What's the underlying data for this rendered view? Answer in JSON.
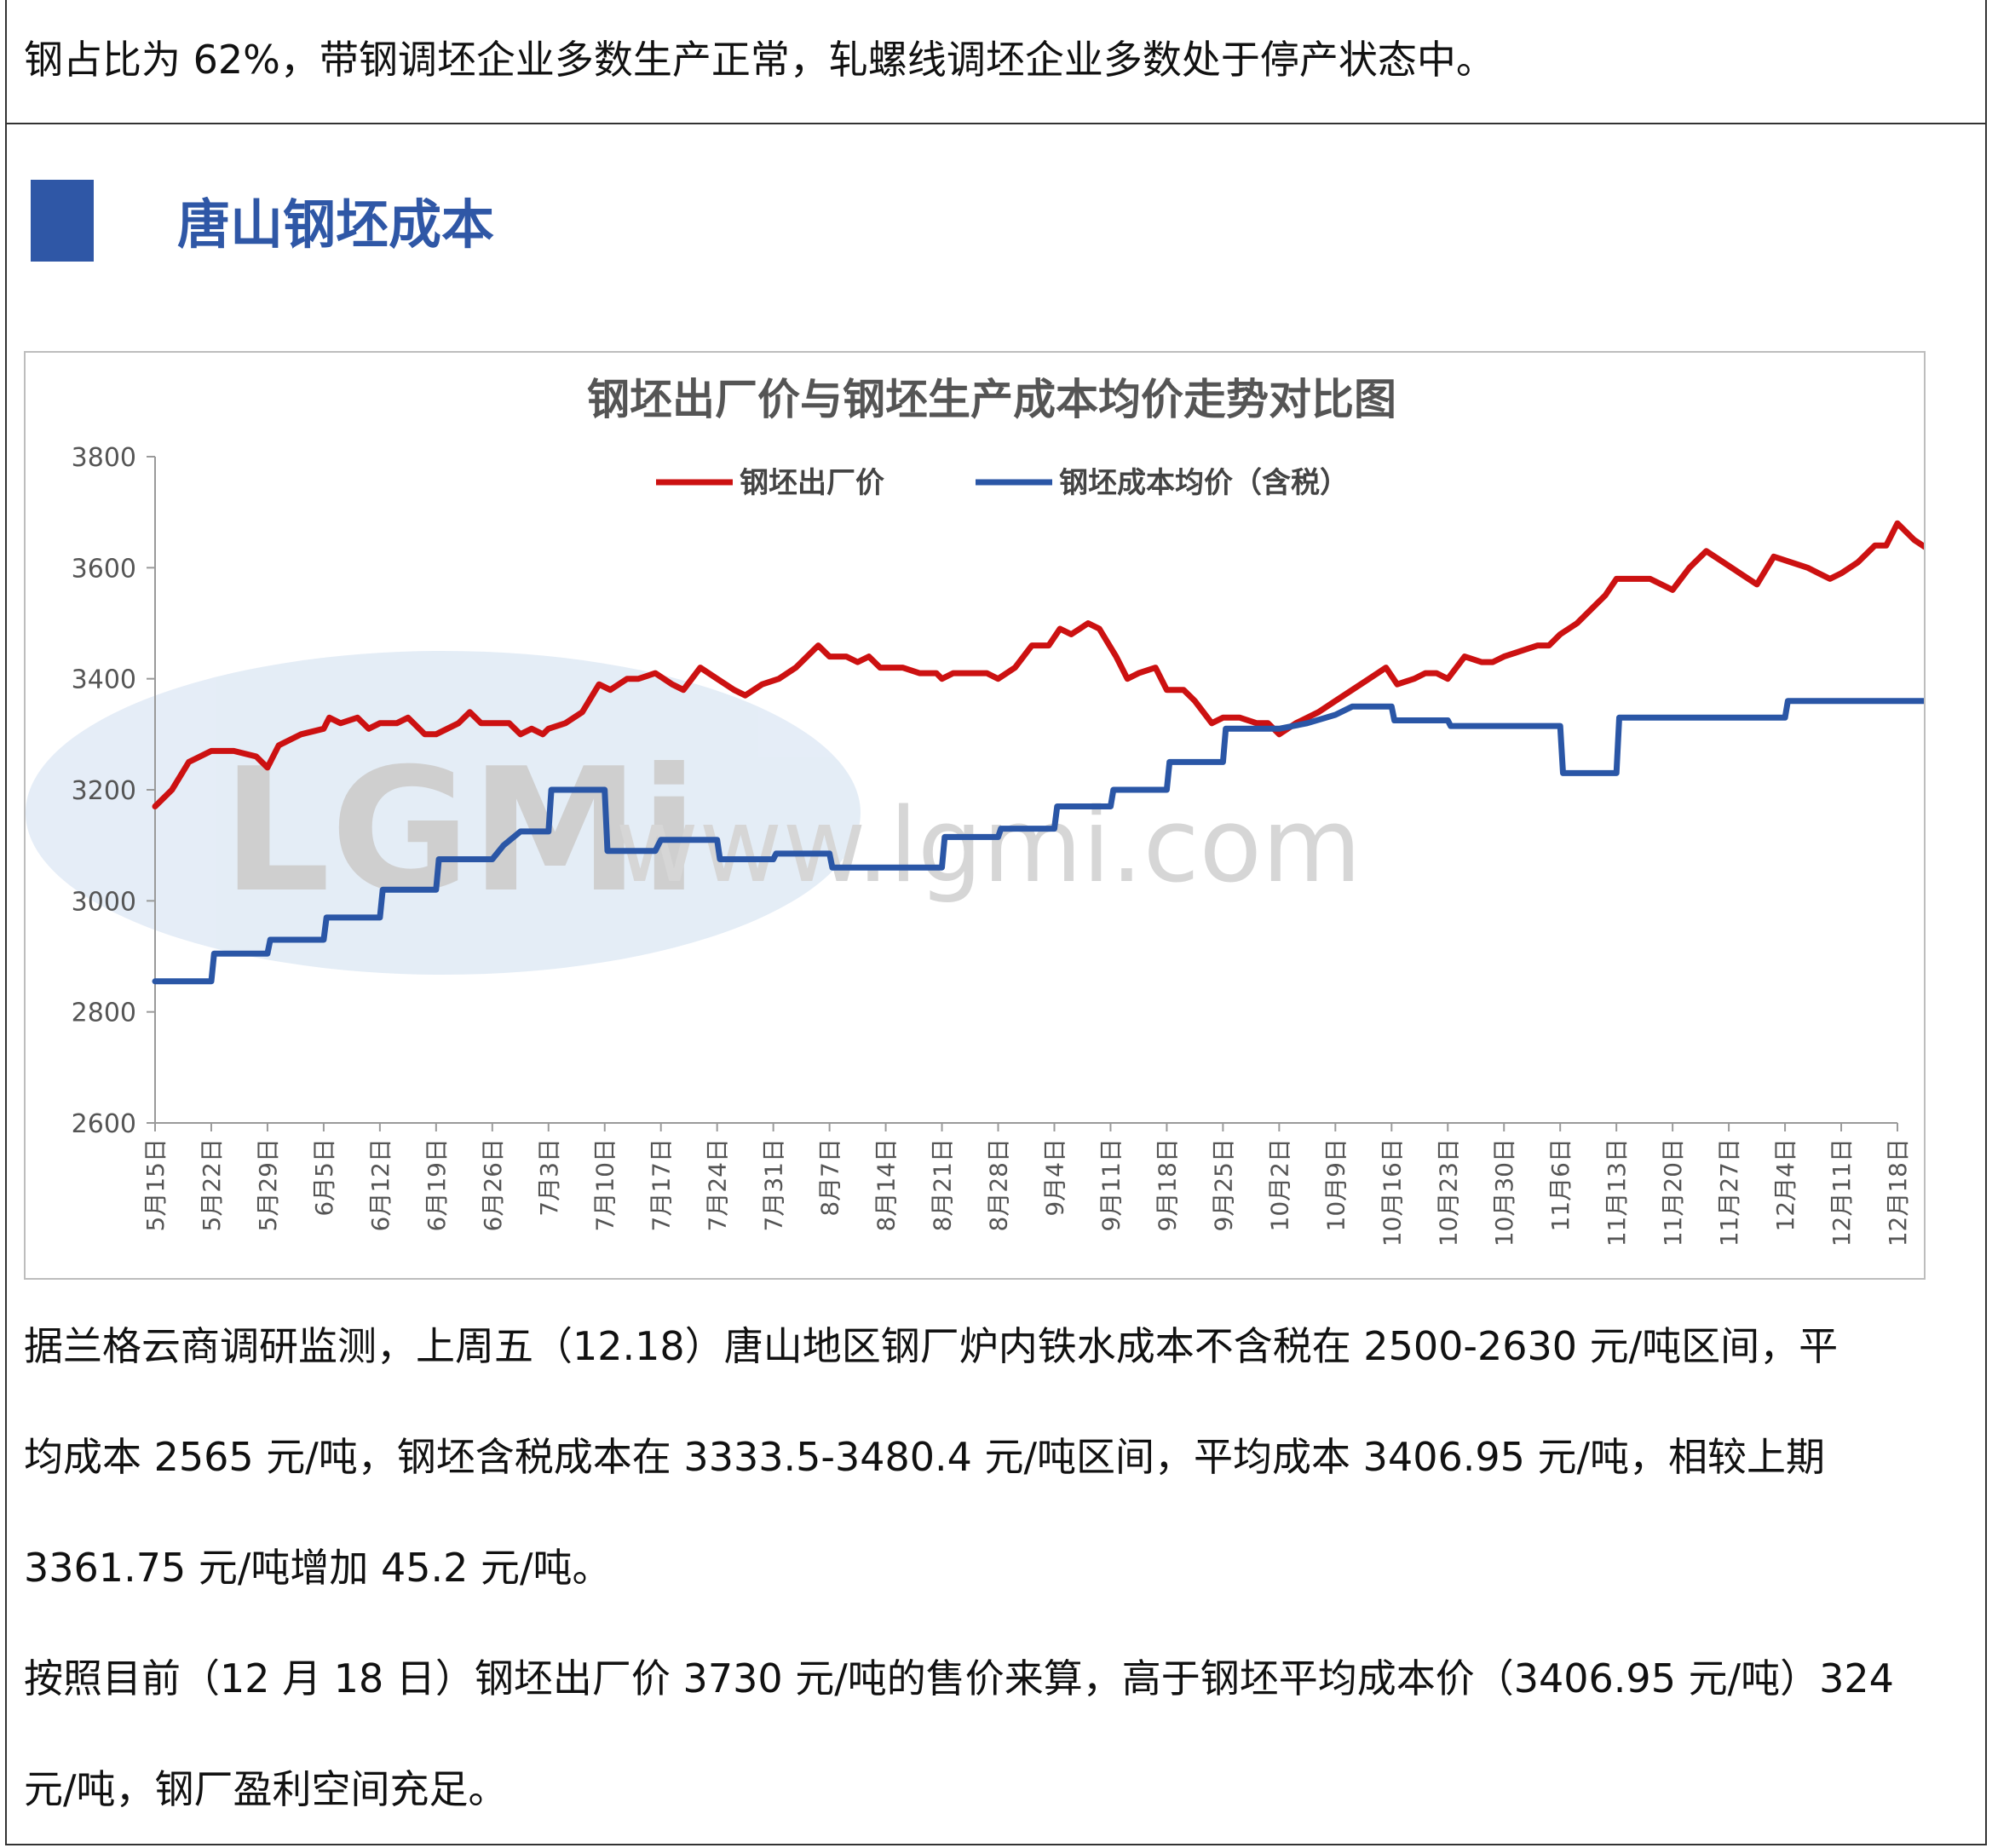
{
  "top_text": "钢占比为 62%，带钢调坯企业多数生产正常，轧螺线调坯企业多数处于停产状态中。",
  "section_title": "唐山钢坯成本",
  "colors": {
    "accent": "#2f57a6",
    "price_line": "#cc1111",
    "cost_line": "#2a56a6"
  },
  "watermark": {
    "logo_text": "LGMi",
    "url_text": "www.lgmi.com"
  },
  "chart_data": {
    "type": "line",
    "title": "钢坯出厂价与钢坯生产成本均价走势对比图",
    "xlabel": "",
    "ylabel": "",
    "ylim": [
      2600,
      3800
    ],
    "yticks": [
      2600,
      2800,
      3000,
      3200,
      3400,
      3600,
      3800
    ],
    "xticks": [
      "5月15日",
      "5月22日",
      "5月29日",
      "6月5日",
      "6月12日",
      "6月19日",
      "6月26日",
      "7月3日",
      "7月10日",
      "7月17日",
      "7月24日",
      "7月31日",
      "8月7日",
      "8月14日",
      "8月21日",
      "8月28日",
      "9月4日",
      "9月11日",
      "9月18日",
      "9月25日",
      "10月2日",
      "10月9日",
      "10月16日",
      "10月23日",
      "10月30日",
      "11月6日",
      "11月13日",
      "11月20日",
      "11月27日",
      "12月4日",
      "12月11日",
      "12月18日"
    ],
    "legend_position": "top",
    "grid": false,
    "series": [
      {
        "name": "钢坯出厂价",
        "color": "#cc1111",
        "points": [
          [
            0,
            3170
          ],
          [
            0.3,
            3200
          ],
          [
            0.6,
            3250
          ],
          [
            1,
            3270
          ],
          [
            1.4,
            3270
          ],
          [
            1.6,
            3265
          ],
          [
            1.8,
            3260
          ],
          [
            2,
            3240
          ],
          [
            2.2,
            3280
          ],
          [
            2.6,
            3300
          ],
          [
            3,
            3310
          ],
          [
            3.1,
            3330
          ],
          [
            3.3,
            3320
          ],
          [
            3.6,
            3330
          ],
          [
            3.8,
            3310
          ],
          [
            4,
            3320
          ],
          [
            4.3,
            3320
          ],
          [
            4.5,
            3330
          ],
          [
            4.8,
            3300
          ],
          [
            5,
            3300
          ],
          [
            5.4,
            3320
          ],
          [
            5.6,
            3340
          ],
          [
            5.8,
            3320
          ],
          [
            6,
            3320
          ],
          [
            6.3,
            3320
          ],
          [
            6.5,
            3300
          ],
          [
            6.7,
            3310
          ],
          [
            6.9,
            3300
          ],
          [
            7,
            3310
          ],
          [
            7.3,
            3320
          ],
          [
            7.6,
            3340
          ],
          [
            7.9,
            3390
          ],
          [
            8.1,
            3380
          ],
          [
            8.4,
            3400
          ],
          [
            8.6,
            3400
          ],
          [
            8.9,
            3410
          ],
          [
            9.2,
            3390
          ],
          [
            9.4,
            3380
          ],
          [
            9.7,
            3420
          ],
          [
            10,
            3400
          ],
          [
            10.3,
            3380
          ],
          [
            10.5,
            3370
          ],
          [
            10.8,
            3390
          ],
          [
            11.1,
            3400
          ],
          [
            11.4,
            3420
          ],
          [
            11.6,
            3440
          ],
          [
            11.8,
            3460
          ],
          [
            12,
            3440
          ],
          [
            12.3,
            3440
          ],
          [
            12.5,
            3430
          ],
          [
            12.7,
            3440
          ],
          [
            12.9,
            3420
          ],
          [
            13.3,
            3420
          ],
          [
            13.6,
            3410
          ],
          [
            13.9,
            3410
          ],
          [
            14,
            3400
          ],
          [
            14.2,
            3410
          ],
          [
            14.6,
            3410
          ],
          [
            14.8,
            3410
          ],
          [
            15,
            3400
          ],
          [
            15.3,
            3420
          ],
          [
            15.6,
            3460
          ],
          [
            15.9,
            3460
          ],
          [
            16.1,
            3490
          ],
          [
            16.3,
            3480
          ],
          [
            16.6,
            3500
          ],
          [
            16.8,
            3490
          ],
          [
            17.1,
            3440
          ],
          [
            17.3,
            3400
          ],
          [
            17.5,
            3410
          ],
          [
            17.8,
            3420
          ],
          [
            18,
            3380
          ],
          [
            18.3,
            3380
          ],
          [
            18.5,
            3360
          ],
          [
            18.8,
            3320
          ],
          [
            19,
            3330
          ],
          [
            19.3,
            3330
          ],
          [
            19.6,
            3320
          ],
          [
            19.8,
            3320
          ],
          [
            20,
            3300
          ],
          [
            20.3,
            3320
          ],
          [
            20.7,
            3340
          ],
          [
            21,
            3360
          ],
          [
            21.3,
            3380
          ],
          [
            21.6,
            3400
          ],
          [
            21.9,
            3420
          ],
          [
            22.1,
            3390
          ],
          [
            22.4,
            3400
          ],
          [
            22.6,
            3410
          ],
          [
            22.8,
            3410
          ],
          [
            23,
            3400
          ],
          [
            23.3,
            3440
          ],
          [
            23.6,
            3430
          ],
          [
            23.8,
            3430
          ],
          [
            24,
            3440
          ],
          [
            24.3,
            3450
          ],
          [
            24.6,
            3460
          ],
          [
            24.8,
            3460
          ],
          [
            25,
            3480
          ],
          [
            25.3,
            3500
          ],
          [
            25.6,
            3530
          ],
          [
            25.8,
            3550
          ],
          [
            26,
            3580
          ],
          [
            26.3,
            3580
          ],
          [
            26.6,
            3580
          ],
          [
            26.8,
            3570
          ],
          [
            27,
            3560
          ],
          [
            27.3,
            3600
          ],
          [
            27.6,
            3630
          ],
          [
            27.9,
            3610
          ],
          [
            28.2,
            3590
          ],
          [
            28.5,
            3570
          ],
          [
            28.8,
            3620
          ],
          [
            29.1,
            3610
          ],
          [
            29.4,
            3600
          ],
          [
            29.6,
            3590
          ],
          [
            29.8,
            3580
          ],
          [
            30,
            3590
          ],
          [
            30.3,
            3610
          ],
          [
            30.6,
            3640
          ],
          [
            30.8,
            3640
          ],
          [
            31,
            3680
          ],
          [
            31.3,
            3650
          ],
          [
            31.6,
            3630
          ],
          [
            31.8,
            3650
          ],
          [
            32,
            3660
          ],
          [
            32.3,
            3700
          ],
          [
            32.5,
            3730
          ]
        ]
      },
      {
        "name": "钢坯成本均价（含税）",
        "color": "#2a56a6",
        "points": [
          [
            0,
            2855
          ],
          [
            1,
            2855
          ],
          [
            1.05,
            2905
          ],
          [
            2,
            2905
          ],
          [
            2.05,
            2930
          ],
          [
            3,
            2930
          ],
          [
            3.05,
            2970
          ],
          [
            4,
            2970
          ],
          [
            4.05,
            3020
          ],
          [
            5,
            3020
          ],
          [
            5.05,
            3075
          ],
          [
            6,
            3075
          ],
          [
            6.2,
            3100
          ],
          [
            6.5,
            3125
          ],
          [
            7,
            3125
          ],
          [
            7.05,
            3200
          ],
          [
            8,
            3200
          ],
          [
            8.05,
            3090
          ],
          [
            8.9,
            3090
          ],
          [
            9,
            3110
          ],
          [
            10,
            3110
          ],
          [
            10.05,
            3075
          ],
          [
            11,
            3075
          ],
          [
            11.05,
            3085
          ],
          [
            12,
            3085
          ],
          [
            12.05,
            3060
          ],
          [
            14,
            3060
          ],
          [
            14.05,
            3115
          ],
          [
            15,
            3115
          ],
          [
            15.05,
            3130
          ],
          [
            16,
            3130
          ],
          [
            16.05,
            3170
          ],
          [
            17,
            3170
          ],
          [
            17.05,
            3200
          ],
          [
            18,
            3200
          ],
          [
            18.05,
            3250
          ],
          [
            19,
            3250
          ],
          [
            19.05,
            3310
          ],
          [
            20,
            3310
          ],
          [
            20.5,
            3320
          ],
          [
            21,
            3335
          ],
          [
            21.3,
            3350
          ],
          [
            22,
            3350
          ],
          [
            22.05,
            3325
          ],
          [
            23,
            3325
          ],
          [
            23.05,
            3315
          ],
          [
            25,
            3315
          ],
          [
            25.05,
            3230
          ],
          [
            26,
            3230
          ],
          [
            26.05,
            3330
          ],
          [
            29,
            3330
          ],
          [
            29.05,
            3360
          ],
          [
            31,
            3360
          ],
          [
            32.4,
            3360
          ],
          [
            32.5,
            3410
          ]
        ]
      }
    ]
  },
  "paragraphs": [
    "据兰格云商调研监测，上周五（12.18）唐山地区钢厂炉内铁水成本不含税在 2500-2630 元/吨区间，平",
    "均成本 2565 元/吨，钢坯含税成本在 3333.5-3480.4 元/吨区间，平均成本 3406.95 元/吨，相较上期",
    "3361.75 元/吨增加 45.2 元/吨。",
    "按照目前（12 月 18 日）钢坯出厂价 3730 元/吨的售价来算，高于钢坯平均成本价（3406.95 元/吨）324",
    "元/吨，钢厂盈利空间充足。"
  ]
}
